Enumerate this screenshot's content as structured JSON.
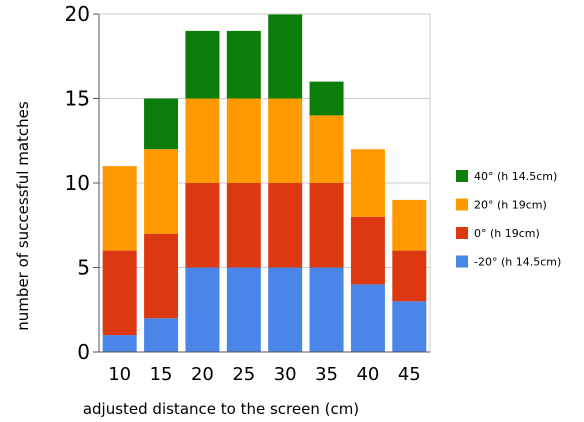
{
  "chart_data": {
    "type": "bar",
    "stacked": true,
    "categories": [
      "10",
      "15",
      "20",
      "25",
      "30",
      "35",
      "40",
      "45"
    ],
    "series": [
      {
        "name": "-20° (h 14.5cm)",
        "color": "#4a86e8",
        "values": [
          1,
          2,
          5,
          5,
          5,
          5,
          4,
          3
        ]
      },
      {
        "name": "0° (h 19cm)",
        "color": "#dc3912",
        "values": [
          5,
          5,
          5,
          5,
          5,
          5,
          4,
          3
        ]
      },
      {
        "name": "20° (h 19cm)",
        "color": "#ff9900",
        "values": [
          5,
          5,
          5,
          5,
          5,
          4,
          4,
          3
        ]
      },
      {
        "name": "40° (h 14.5cm)",
        "color": "#0a7d0a",
        "values": [
          0,
          3,
          4,
          4,
          5,
          2,
          0,
          0
        ]
      }
    ],
    "xlabel": "adjusted distance to the screen (cm)",
    "ylabel": "number of successful matches",
    "ylim": [
      0,
      20
    ],
    "yticks": [
      "0",
      "5",
      "10",
      "15",
      "20"
    ],
    "grid": true,
    "legend_position": "right"
  }
}
